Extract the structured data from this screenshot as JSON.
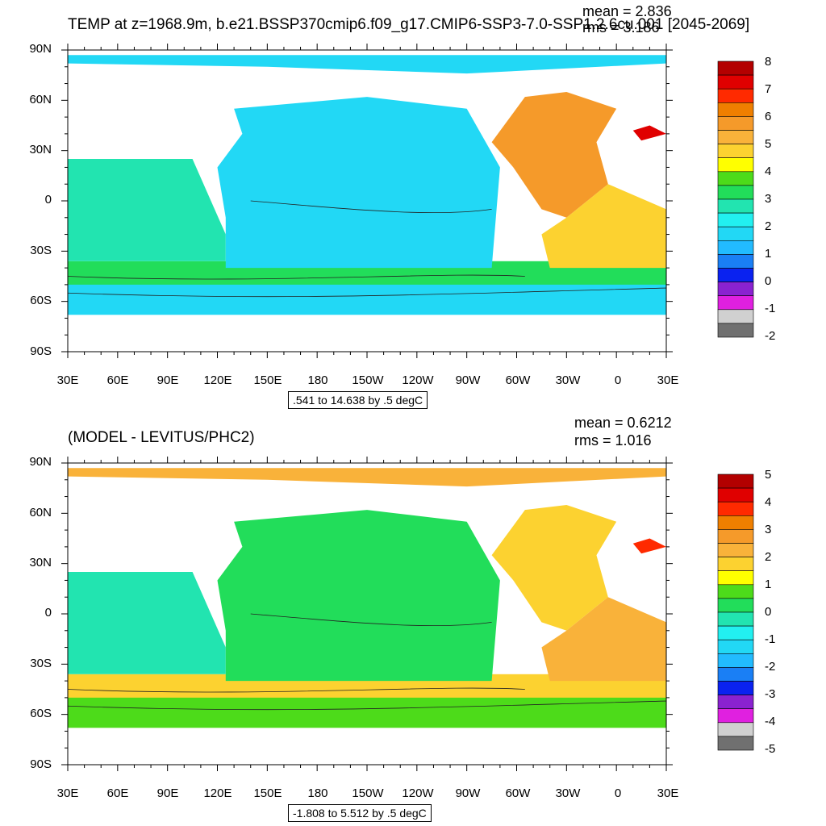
{
  "panels": [
    {
      "title": "TEMP at z=1968.9m, b.e21.BSSP370cmip6.f09_g17.CMIP6-SSP3-7.0-SSP1.2.6cu.001 [2045-2069]",
      "mean": "mean = 2.836",
      "rms": "rms = 3.186",
      "contour_info": ".541 to 14.638 by .5 degC",
      "lat_labels": [
        "90N",
        "60N",
        "30N",
        "0",
        "30S",
        "60S",
        "90S"
      ],
      "lon_labels": [
        "30E",
        "60E",
        "90E",
        "120E",
        "150E",
        "180",
        "150W",
        "120W",
        "90W",
        "60W",
        "30W",
        "0",
        "30E"
      ],
      "colorbar": {
        "labels": [
          "8",
          "7",
          "6",
          "5",
          "4",
          "3",
          "2",
          "1",
          "0",
          "-1",
          "-2"
        ],
        "colors": [
          "#b30000",
          "#e00000",
          "#ff2a00",
          "#ef7f00",
          "#f59a2a",
          "#f9b23a",
          "#fcd230",
          "#ffff00",
          "#4ddb1a",
          "#22dd5a",
          "#22e4b0",
          "#22f0f0",
          "#22d8f5",
          "#22bbff",
          "#1a7ff5",
          "#0a22f0",
          "#8a22d0",
          "#e020e0",
          "#d0d0d0",
          "#707070"
        ]
      },
      "regions": {
        "arctic": "#22d8f5",
        "pacific": "#22d8f5",
        "indian": "#22e4b0",
        "southern_band": "#22dd5a",
        "southern": "#22d8f5",
        "atlantic": "#f59a2a",
        "south_atlantic": "#fcd230",
        "med": "#e00000"
      }
    },
    {
      "title": "(MODEL - LEVITUS/PHC2)",
      "mean": "mean = 0.6212",
      "rms": "rms = 1.016",
      "contour_info": "-1.808 to 5.512 by .5 degC",
      "lat_labels": [
        "90N",
        "60N",
        "30N",
        "0",
        "30S",
        "60S",
        "90S"
      ],
      "lon_labels": [
        "30E",
        "60E",
        "90E",
        "120E",
        "150E",
        "180",
        "150W",
        "120W",
        "90W",
        "60W",
        "30W",
        "0",
        "30E"
      ],
      "colorbar": {
        "labels": [
          "5",
          "4",
          "3",
          "2",
          "1",
          "0",
          "-1",
          "-2",
          "-3",
          "-4",
          "-5"
        ],
        "colors": [
          "#b30000",
          "#e00000",
          "#ff2a00",
          "#ef7f00",
          "#f59a2a",
          "#f9b23a",
          "#fcd230",
          "#ffff00",
          "#4ddb1a",
          "#22dd5a",
          "#22e4b0",
          "#22f0f0",
          "#22d8f5",
          "#22bbff",
          "#1a7ff5",
          "#0a22f0",
          "#8a22d0",
          "#e020e0",
          "#d0d0d0",
          "#707070"
        ]
      },
      "regions": {
        "arctic": "#f9b23a",
        "pacific": "#22dd5a",
        "indian": "#22e4b0",
        "southern_band": "#fcd230",
        "southern": "#4ddb1a",
        "atlantic": "#fcd230",
        "south_atlantic": "#f9b23a",
        "med": "#ff2a00"
      }
    }
  ]
}
